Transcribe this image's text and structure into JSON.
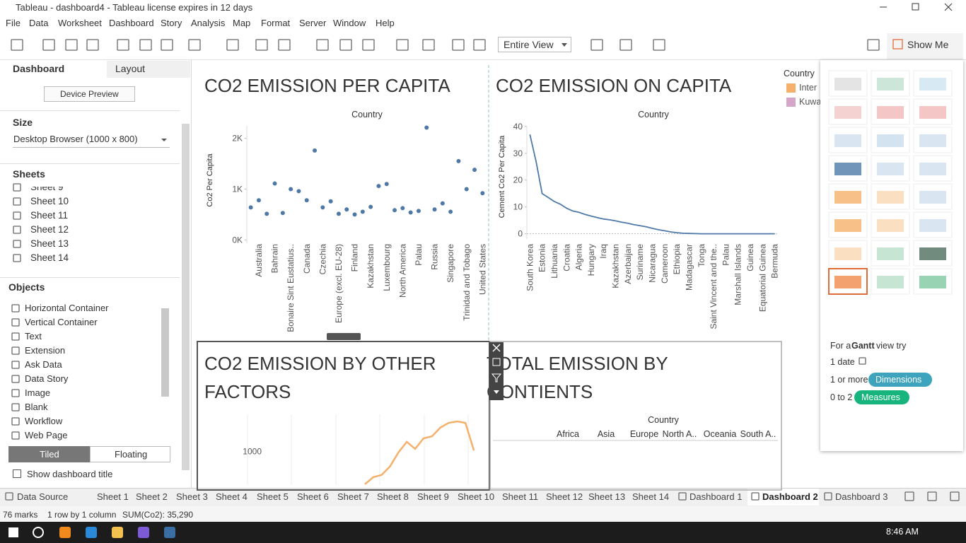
{
  "window": {
    "title": "Tableau - dashboard4 - Tableau license expires in 12 days"
  },
  "menu": [
    "File",
    "Data",
    "Worksheet",
    "Dashboard",
    "Story",
    "Analysis",
    "Map",
    "Format",
    "Server",
    "Window",
    "Help"
  ],
  "toolbar": {
    "view_mode": "Entire View",
    "show_me": "Show Me"
  },
  "left_panel": {
    "tabs": [
      "Dashboard",
      "Layout"
    ],
    "device_preview": "Device Preview",
    "size_heading": "Size",
    "size_value": "Desktop Browser (1000 x 800)",
    "sheets_heading": "Sheets",
    "sheets": [
      "Sheet 9",
      "Sheet 10",
      "Sheet 11",
      "Sheet 12",
      "Sheet 13",
      "Sheet 14"
    ],
    "objects_heading": "Objects",
    "objects": [
      "Horizontal Container",
      "Vertical Container",
      "Text",
      "Extension",
      "Ask Data",
      "Data Story",
      "Image",
      "Blank",
      "Workflow",
      "Web Page"
    ],
    "layout_modes": [
      "Tiled",
      "Floating"
    ],
    "show_title": "Show dashboard title"
  },
  "charts": [
    {
      "type": "scatter",
      "title": "CO2 EMISSION PER CAPITA",
      "x_header": "Country",
      "y_label": "Co2 Per Capita",
      "categories": [
        null,
        "Australia",
        null,
        "Bahrain",
        null,
        "Bonaire Sint Eustatius..",
        null,
        "Canada",
        null,
        "Czechia",
        null,
        "Europe (excl. EU-28)",
        null,
        "Finland",
        null,
        "Kazakhstan",
        null,
        "Luxembourg",
        null,
        "North America",
        null,
        "Palau",
        null,
        "Russia",
        null,
        "Singapore",
        null,
        "Trinidad and Tobago",
        null,
        "United States"
      ],
      "values": [
        640,
        780,
        515,
        1110,
        530,
        1000,
        960,
        780,
        1760,
        640,
        760,
        515,
        600,
        500,
        555,
        650,
        1060,
        1100,
        585,
        625,
        540,
        570,
        2210,
        600,
        720,
        555,
        1550,
        1000,
        1380,
        920
      ],
      "color": "#4e79a7",
      "ylim": [
        -120,
        2300
      ],
      "yticks": [
        {
          "value": 0,
          "label": "0K"
        },
        {
          "value": 1000,
          "label": "1K"
        },
        {
          "value": 2000,
          "label": "2K"
        }
      ]
    },
    {
      "type": "line",
      "title": "CO2 EMISSION ON CAPITA",
      "x_header": "Country",
      "y_label": "Cement Co2 Per Capita",
      "categories": [
        "South Korea",
        null,
        "Estonia",
        null,
        "Lithuania",
        null,
        "Croatia",
        null,
        "Algeria",
        null,
        "Hungary",
        null,
        "Iraq",
        null,
        "Kazakhstan",
        null,
        "Azerbaijan",
        null,
        "Suriname",
        null,
        "Nicaragua",
        null,
        "Cameroon",
        null,
        "Ethiopia",
        null,
        "Madagascar",
        null,
        "Tonga",
        null,
        "Saint Vincent and the..",
        null,
        "Palau",
        null,
        "Marshall Islands",
        null,
        "Guinea",
        null,
        "Equatorial Guinea",
        null,
        "Bermuda"
      ],
      "values": [
        37,
        27,
        15,
        13.5,
        12,
        11,
        9.5,
        8.5,
        8,
        7.2,
        6.6,
        6,
        5.5,
        5.2,
        4.8,
        4.3,
        3.9,
        3.4,
        3,
        2.6,
        2,
        1.5,
        1.1,
        0.7,
        0.4,
        0.2,
        0.1,
        0.05,
        0,
        0,
        0,
        0,
        0,
        0,
        0,
        0,
        0,
        0,
        0,
        0,
        0
      ],
      "color": "#4e79a7",
      "ylim": [
        -3,
        41
      ],
      "yticks": [
        0,
        10,
        20,
        30,
        40
      ]
    },
    {
      "type": "line",
      "title": "CO2 EMISSION BY OTHER FACTORS",
      "values": [
        560,
        655,
        685,
        800,
        987,
        1130,
        1035,
        1177,
        1205,
        1320,
        1385,
        1405,
        1385,
        1015
      ],
      "color": "#f5b06b",
      "ylim": [
        550,
        1500
      ],
      "yticks": [
        1000
      ]
    },
    {
      "type": "table",
      "title": "TOTAL EMISSION BY CONTIENTS",
      "x_header": "Country",
      "categories": [
        "Africa",
        "Asia",
        "Europe",
        "North A..",
        "Oceania",
        "South A.."
      ]
    }
  ],
  "legend": {
    "title": "Country",
    "items": [
      {
        "name": "Inter",
        "color": "#f5b06b"
      },
      {
        "name": "Kuwa",
        "color": "#d4a6c8"
      }
    ]
  },
  "show_me": {
    "hint_prefix": "For a",
    "hint_type": "Gantt",
    "hint_suffix": "view try",
    "requirements": [
      {
        "count": "1 date"
      },
      {
        "count": "1 or more",
        "pill": "Dimensions",
        "color": "#3ea4bd"
      },
      {
        "count": "0 to 2",
        "pill": "Measures",
        "color": "#17b57d"
      }
    ]
  },
  "tabs": [
    "Data Source",
    "Sheet 1",
    "Sheet 2",
    "Sheet 3",
    "Sheet 4",
    "Sheet 5",
    "Sheet 6",
    "Sheet 7",
    "Sheet 8",
    "Sheet 9",
    "Sheet 10",
    "Sheet 11",
    "Sheet 12",
    "Sheet 13",
    "Sheet 14",
    "Dashboard 1",
    "Dashboard 2",
    "Dashboard 3"
  ],
  "status": [
    "76 marks",
    "1 row by 1 column",
    "SUM(Co2): 35,290"
  ],
  "taskbar": {
    "time": "8:46 AM"
  }
}
